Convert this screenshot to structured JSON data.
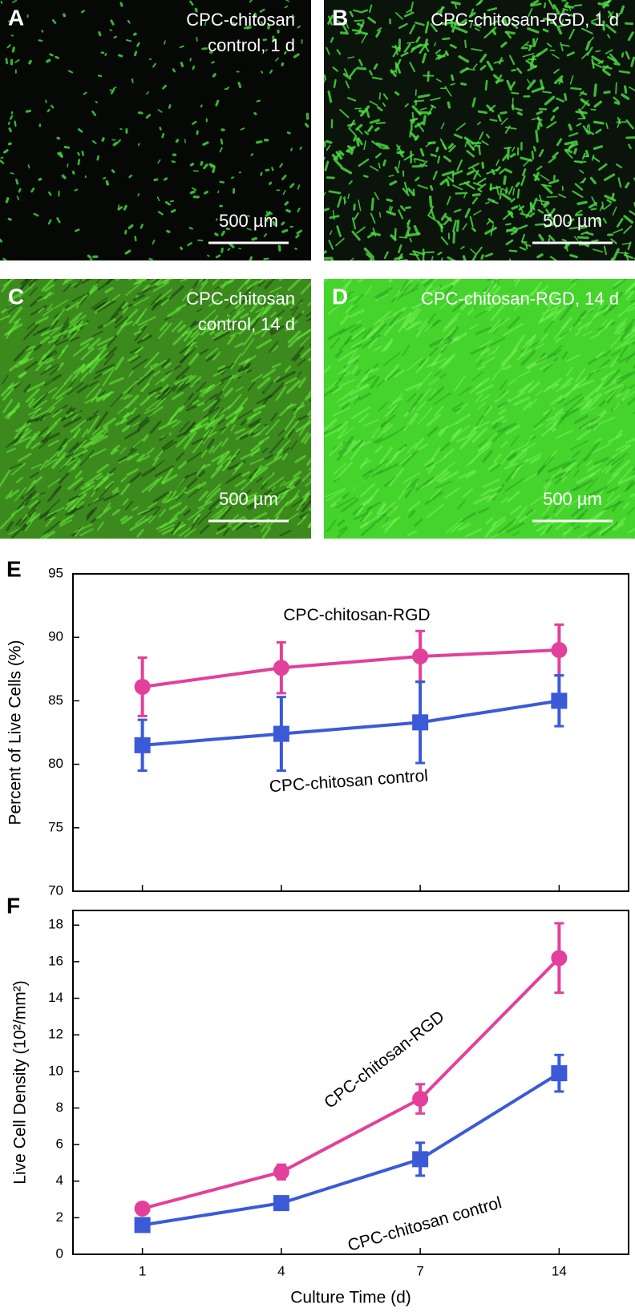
{
  "panels": [
    {
      "letter": "A",
      "label_lines": [
        "CPC-chitosan",
        "control, 1 d"
      ],
      "scale_bar": "500 µm"
    },
    {
      "letter": "B",
      "label_lines": [
        "CPC-chitosan-RGD, 1 d"
      ],
      "scale_bar": "500 µm"
    },
    {
      "letter": "C",
      "label_lines": [
        "CPC-chitosan",
        "control, 14 d"
      ],
      "scale_bar": "500 µm"
    },
    {
      "letter": "D",
      "label_lines": [
        "CPC-chitosan-RGD, 14 d"
      ],
      "scale_bar": "500 µm"
    }
  ],
  "chart_data": [
    {
      "type": "line",
      "panel_letter": "E",
      "y_label": "Percent of Live Cells  (%)",
      "categories": [
        null,
        null,
        null,
        null
      ],
      "ylim": [
        70,
        95
      ],
      "yticks": [
        70,
        75,
        80,
        85,
        90,
        95
      ],
      "annotations": [
        "CPC-chitosan-RGD",
        "CPC-chitosan control"
      ],
      "series": [
        {
          "name": "CPC-chitosan-RGD",
          "color": "#e2409b",
          "marker": "circle",
          "values": [
            86.1,
            87.6,
            88.5,
            89.0
          ],
          "error": [
            2.3,
            2.0,
            2.0,
            2.0
          ]
        },
        {
          "name": "CPC-chitosan control",
          "color": "#3a5ad8",
          "marker": "square",
          "values": [
            81.5,
            82.4,
            83.3,
            85.0
          ],
          "error": [
            2.0,
            2.9,
            3.2,
            2.0
          ]
        }
      ]
    },
    {
      "type": "line",
      "panel_letter": "F",
      "y_label": "Live Cell Density  (10²/mm²)",
      "x_label": "Culture Time  (d)",
      "categories": [
        "1",
        "4",
        "7",
        "14"
      ],
      "ylim": [
        0,
        18.8
      ],
      "yticks": [
        0,
        2,
        4,
        6,
        8,
        10,
        12,
        14,
        16,
        18
      ],
      "annotations": [
        "CPC-chitosan-RGD",
        "CPC-chitosan control"
      ],
      "series": [
        {
          "name": "CPC-chitosan-RGD",
          "color": "#e2409b",
          "marker": "circle",
          "values": [
            2.5,
            4.5,
            8.5,
            16.2
          ],
          "error": [
            0.3,
            0.4,
            0.8,
            1.9
          ]
        },
        {
          "name": "CPC-chitosan control",
          "color": "#3a5ad8",
          "marker": "square",
          "values": [
            1.6,
            2.8,
            5.2,
            9.9
          ],
          "error": [
            0.2,
            0.3,
            0.9,
            1.0
          ]
        }
      ]
    }
  ]
}
